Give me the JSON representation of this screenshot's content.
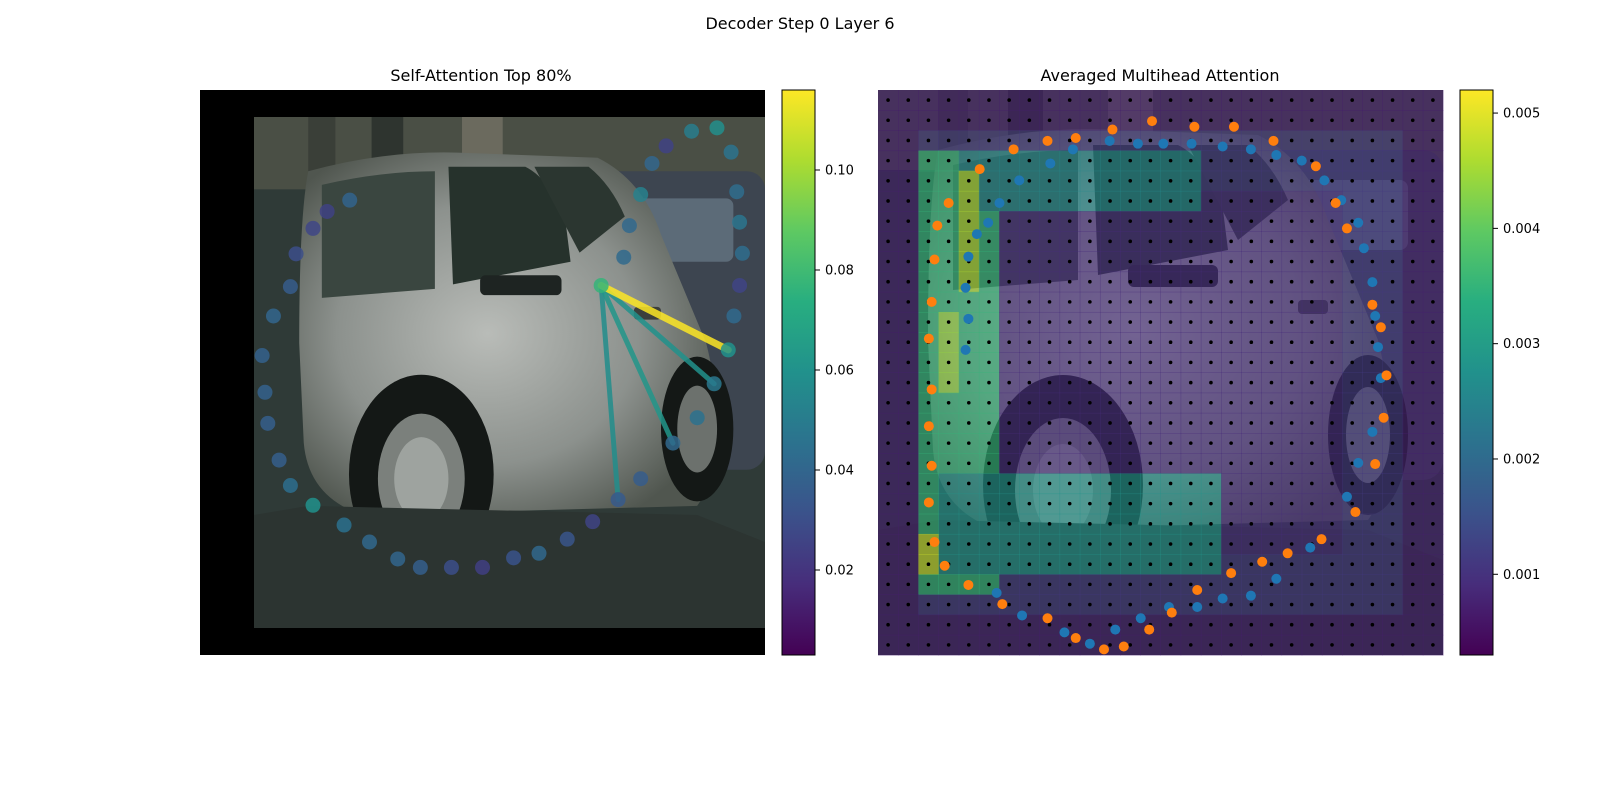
{
  "figure": {
    "suptitle": "Decoder Step 0 Layer 6"
  },
  "chart_data": [
    {
      "type": "scatter",
      "title": "Self-Attention Top 80%",
      "background": "photo of a silver hatchback car parked on a street, darker car behind",
      "xlim": [
        0,
        1
      ],
      "ylim": [
        0,
        1
      ],
      "colorbar": {
        "colormap": "viridis",
        "range": [
          0.003,
          0.116
        ],
        "ticks": [
          "0.02",
          "0.04",
          "0.06",
          "0.08",
          "0.10"
        ],
        "tick_values": [
          0.02,
          0.04,
          0.06,
          0.08,
          0.1
        ]
      },
      "points": [
        {
          "x": 0.71,
          "y": 0.654,
          "v": 0.077
        },
        {
          "x": 0.75,
          "y": 0.704,
          "v": 0.042
        },
        {
          "x": 0.76,
          "y": 0.76,
          "v": 0.041
        },
        {
          "x": 0.78,
          "y": 0.815,
          "v": 0.052
        },
        {
          "x": 0.8,
          "y": 0.87,
          "v": 0.04
        },
        {
          "x": 0.825,
          "y": 0.901,
          "v": 0.025
        },
        {
          "x": 0.87,
          "y": 0.927,
          "v": 0.05
        },
        {
          "x": 0.915,
          "y": 0.933,
          "v": 0.058
        },
        {
          "x": 0.94,
          "y": 0.89,
          "v": 0.046
        },
        {
          "x": 0.95,
          "y": 0.82,
          "v": 0.043
        },
        {
          "x": 0.955,
          "y": 0.766,
          "v": 0.047
        },
        {
          "x": 0.96,
          "y": 0.711,
          "v": 0.043
        },
        {
          "x": 0.955,
          "y": 0.654,
          "v": 0.026
        },
        {
          "x": 0.945,
          "y": 0.6,
          "v": 0.042
        },
        {
          "x": 0.935,
          "y": 0.54,
          "v": 0.06
        },
        {
          "x": 0.91,
          "y": 0.48,
          "v": 0.048
        },
        {
          "x": 0.88,
          "y": 0.42,
          "v": 0.045
        },
        {
          "x": 0.837,
          "y": 0.375,
          "v": 0.041
        },
        {
          "x": 0.78,
          "y": 0.312,
          "v": 0.036
        },
        {
          "x": 0.74,
          "y": 0.275,
          "v": 0.035
        },
        {
          "x": 0.695,
          "y": 0.236,
          "v": 0.026
        },
        {
          "x": 0.65,
          "y": 0.205,
          "v": 0.033
        },
        {
          "x": 0.6,
          "y": 0.18,
          "v": 0.041
        },
        {
          "x": 0.555,
          "y": 0.172,
          "v": 0.032
        },
        {
          "x": 0.5,
          "y": 0.155,
          "v": 0.024
        },
        {
          "x": 0.445,
          "y": 0.155,
          "v": 0.03
        },
        {
          "x": 0.39,
          "y": 0.155,
          "v": 0.037
        },
        {
          "x": 0.35,
          "y": 0.17,
          "v": 0.04
        },
        {
          "x": 0.3,
          "y": 0.2,
          "v": 0.041
        },
        {
          "x": 0.255,
          "y": 0.23,
          "v": 0.045
        },
        {
          "x": 0.2,
          "y": 0.265,
          "v": 0.06
        },
        {
          "x": 0.16,
          "y": 0.3,
          "v": 0.044
        },
        {
          "x": 0.14,
          "y": 0.345,
          "v": 0.037
        },
        {
          "x": 0.12,
          "y": 0.41,
          "v": 0.037
        },
        {
          "x": 0.115,
          "y": 0.465,
          "v": 0.038
        },
        {
          "x": 0.11,
          "y": 0.53,
          "v": 0.038
        },
        {
          "x": 0.13,
          "y": 0.6,
          "v": 0.04
        },
        {
          "x": 0.16,
          "y": 0.652,
          "v": 0.036
        },
        {
          "x": 0.17,
          "y": 0.71,
          "v": 0.03
        },
        {
          "x": 0.2,
          "y": 0.755,
          "v": 0.027
        },
        {
          "x": 0.225,
          "y": 0.785,
          "v": 0.025
        },
        {
          "x": 0.265,
          "y": 0.805,
          "v": 0.039
        }
      ],
      "attention_links": [
        {
          "from": 0,
          "to": 14,
          "v": 0.116
        },
        {
          "from": 0,
          "to": 15,
          "v": 0.06
        },
        {
          "from": 0,
          "to": 19,
          "v": 0.058
        },
        {
          "from": 0,
          "to": 17,
          "v": 0.062
        }
      ]
    },
    {
      "type": "heatmap",
      "title": "Averaged Multihead Attention",
      "background": "same car photo under attention heatmap",
      "xlim": [
        0,
        1
      ],
      "ylim": [
        0,
        1
      ],
      "grid": {
        "cols": 28,
        "rows": 28,
        "level_outside": 0.0007,
        "level_ring": 0.0011,
        "level_left_band": 0.0035,
        "level_bottom_band": 0.0028,
        "level_top_band": 0.0026,
        "level_center": 0.0009
      },
      "hotspots": [
        {
          "col": 4,
          "row_from": 4,
          "row_to": 9,
          "v": 0.0046
        },
        {
          "col": 2,
          "row_from": 22,
          "row_to": 23,
          "v": 0.0048
        },
        {
          "col": 3,
          "row_from": 11,
          "row_to": 14,
          "v": 0.0044
        }
      ],
      "colorbar": {
        "colormap": "viridis",
        "range": [
          0.0003,
          0.0052
        ],
        "ticks": [
          "0.001",
          "0.002",
          "0.003",
          "0.004",
          "0.005"
        ],
        "tick_values": [
          0.001,
          0.002,
          0.003,
          0.004,
          0.005
        ]
      },
      "series": [
        {
          "name": "",
          "color": "#1f77b4",
          "points": [
            [
              0.155,
              0.54
            ],
            [
              0.16,
              0.595
            ],
            [
              0.155,
              0.65
            ],
            [
              0.16,
              0.705
            ],
            [
              0.175,
              0.745
            ],
            [
              0.195,
              0.765
            ],
            [
              0.215,
              0.8
            ],
            [
              0.25,
              0.84
            ],
            [
              0.305,
              0.87
            ],
            [
              0.345,
              0.895
            ],
            [
              0.41,
              0.91
            ],
            [
              0.46,
              0.905
            ],
            [
              0.505,
              0.905
            ],
            [
              0.555,
              0.905
            ],
            [
              0.61,
              0.9
            ],
            [
              0.66,
              0.895
            ],
            [
              0.705,
              0.885
            ],
            [
              0.75,
              0.875
            ],
            [
              0.79,
              0.84
            ],
            [
              0.82,
              0.805
            ],
            [
              0.85,
              0.765
            ],
            [
              0.86,
              0.72
            ],
            [
              0.875,
              0.66
            ],
            [
              0.88,
              0.6
            ],
            [
              0.885,
              0.545
            ],
            [
              0.89,
              0.49
            ],
            [
              0.875,
              0.395
            ],
            [
              0.85,
              0.34
            ],
            [
              0.83,
              0.28
            ],
            [
              0.765,
              0.19
            ],
            [
              0.705,
              0.135
            ],
            [
              0.66,
              0.105
            ],
            [
              0.61,
              0.1
            ],
            [
              0.565,
              0.085
            ],
            [
              0.515,
              0.085
            ],
            [
              0.465,
              0.065
            ],
            [
              0.42,
              0.045
            ],
            [
              0.375,
              0.02
            ],
            [
              0.33,
              0.04
            ],
            [
              0.255,
              0.07
            ],
            [
              0.21,
              0.11
            ]
          ]
        },
        {
          "name": "",
          "color": "#ff7f0e",
          "points": [
            [
              0.125,
              0.8
            ],
            [
              0.105,
              0.76
            ],
            [
              0.1,
              0.7
            ],
            [
              0.095,
              0.625
            ],
            [
              0.09,
              0.56
            ],
            [
              0.095,
              0.47
            ],
            [
              0.09,
              0.405
            ],
            [
              0.095,
              0.335
            ],
            [
              0.09,
              0.27
            ],
            [
              0.1,
              0.2
            ],
            [
              0.118,
              0.158
            ],
            [
              0.16,
              0.124
            ],
            [
              0.22,
              0.09
            ],
            [
              0.3,
              0.065
            ],
            [
              0.35,
              0.03
            ],
            [
              0.4,
              0.01
            ],
            [
              0.435,
              0.015
            ],
            [
              0.48,
              0.045
            ],
            [
              0.52,
              0.075
            ],
            [
              0.565,
              0.115
            ],
            [
              0.625,
              0.145
            ],
            [
              0.68,
              0.165
            ],
            [
              0.725,
              0.18
            ],
            [
              0.785,
              0.205
            ],
            [
              0.845,
              0.253
            ],
            [
              0.88,
              0.338
            ],
            [
              0.895,
              0.42
            ],
            [
              0.9,
              0.495
            ],
            [
              0.89,
              0.58
            ],
            [
              0.875,
              0.62
            ],
            [
              0.83,
              0.755
            ],
            [
              0.81,
              0.8
            ],
            [
              0.775,
              0.865
            ],
            [
              0.7,
              0.91
            ],
            [
              0.63,
              0.935
            ],
            [
              0.56,
              0.935
            ],
            [
              0.485,
              0.945
            ],
            [
              0.415,
              0.93
            ],
            [
              0.35,
              0.915
            ],
            [
              0.3,
              0.91
            ],
            [
              0.24,
              0.895
            ],
            [
              0.18,
              0.86
            ]
          ]
        }
      ]
    }
  ]
}
